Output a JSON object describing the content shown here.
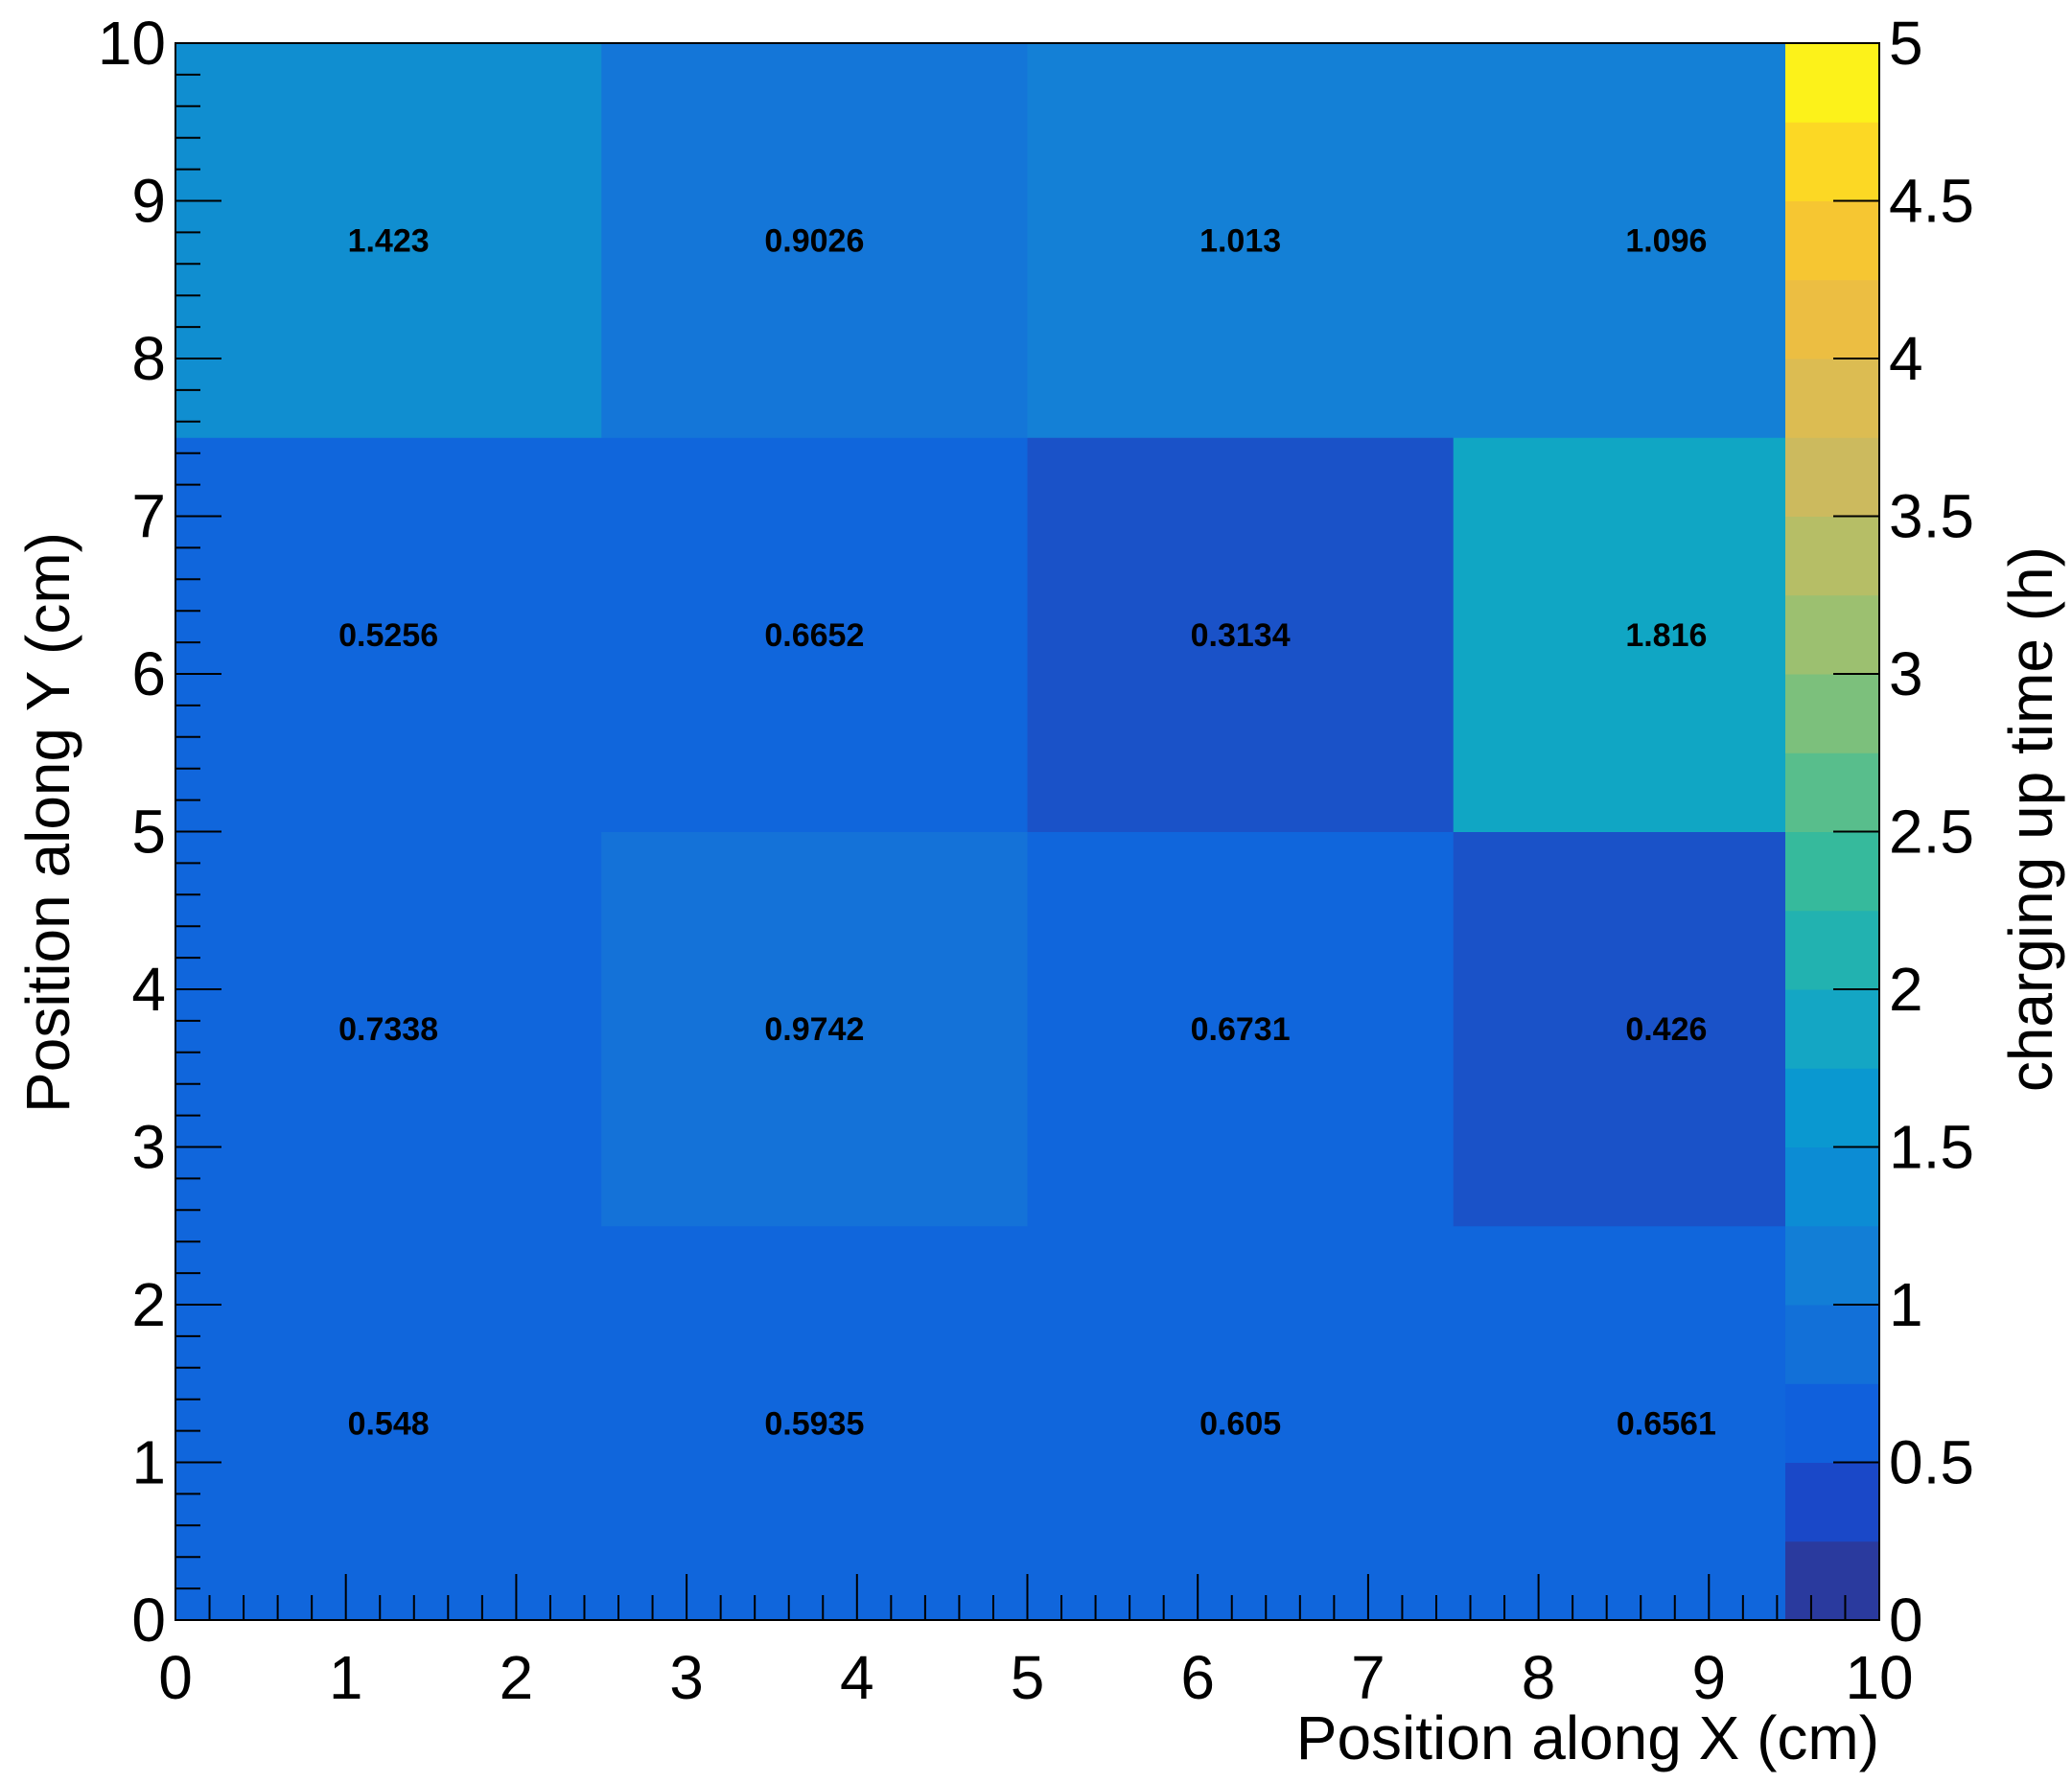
{
  "chart_data": {
    "type": "heatmap",
    "title": "",
    "xlabel": "Position along X (cm)",
    "ylabel": "Position along Y (cm)",
    "zlabel": "charging up time (h)",
    "xlim": [
      0,
      10
    ],
    "ylim": [
      0,
      10
    ],
    "zlim": [
      0,
      5
    ],
    "x_ticks": [
      "0",
      "1",
      "2",
      "3",
      "4",
      "5",
      "6",
      "7",
      "8",
      "9",
      "10"
    ],
    "y_ticks": [
      "0",
      "1",
      "2",
      "3",
      "4",
      "5",
      "6",
      "7",
      "8",
      "9",
      "10"
    ],
    "z_ticks": [
      "0",
      "0.5",
      "1",
      "1.5",
      "2",
      "2.5",
      "3",
      "3.5",
      "4",
      "4.5",
      "5"
    ],
    "x_bin_edges": [
      0,
      2.5,
      5,
      7.5,
      9.5
    ],
    "y_bin_edges": [
      0,
      2.5,
      5,
      7.5,
      10
    ],
    "cells": [
      {
        "x": 1.25,
        "y": 1.25,
        "value": 0.548,
        "label": "0.548"
      },
      {
        "x": 3.75,
        "y": 1.25,
        "value": 0.5935,
        "label": "0.5935"
      },
      {
        "x": 6.25,
        "y": 1.25,
        "value": 0.605,
        "label": "0.605"
      },
      {
        "x": 8.75,
        "y": 1.25,
        "value": 0.6561,
        "label": "0.6561"
      },
      {
        "x": 1.25,
        "y": 3.75,
        "value": 0.7338,
        "label": "0.7338"
      },
      {
        "x": 3.75,
        "y": 3.75,
        "value": 0.9742,
        "label": "0.9742"
      },
      {
        "x": 6.25,
        "y": 3.75,
        "value": 0.6731,
        "label": "0.6731"
      },
      {
        "x": 8.75,
        "y": 3.75,
        "value": 0.426,
        "label": "0.426"
      },
      {
        "x": 1.25,
        "y": 6.25,
        "value": 0.5256,
        "label": "0.5256"
      },
      {
        "x": 3.75,
        "y": 6.25,
        "value": 0.6652,
        "label": "0.6652"
      },
      {
        "x": 6.25,
        "y": 6.25,
        "value": 0.3134,
        "label": "0.3134"
      },
      {
        "x": 8.75,
        "y": 6.25,
        "value": 1.816,
        "label": "1.816"
      },
      {
        "x": 1.25,
        "y": 8.75,
        "value": 1.423,
        "label": "1.423"
      },
      {
        "x": 3.75,
        "y": 8.75,
        "value": 0.9026,
        "label": "0.9026"
      },
      {
        "x": 6.25,
        "y": 8.75,
        "value": 1.013,
        "label": "1.013"
      },
      {
        "x": 8.75,
        "y": 8.75,
        "value": 1.096,
        "label": "1.096"
      }
    ],
    "colorbar_palette": [
      "#2a3a9e",
      "#1a48c8",
      "#1060dc",
      "#1270d8",
      "#127ed6",
      "#0c8cd4",
      "#0a98d0",
      "#14a6c4",
      "#22b2b0",
      "#36ba9c",
      "#58be8c",
      "#7cc07c",
      "#9cc070",
      "#b6be66",
      "#ccba5e",
      "#dcbc52",
      "#ecbe42",
      "#f6c632",
      "#fcd824",
      "#fcf21a"
    ],
    "cell_colors": {
      "0.548": "#1066dc",
      "0.5935": "#1066dc",
      "0.605": "#1066dc",
      "0.6561": "#1066dc",
      "0.7338": "#1066dc",
      "0.9742": "#1472d8",
      "0.6731": "#1066dc",
      "0.426": "#1a52c8",
      "0.5256": "#1066dc",
      "0.6652": "#1066dc",
      "0.3134": "#1a52c8",
      "1.816": "#10a6c4",
      "1.423": "#108ed0",
      "0.9026": "#1476d8",
      "1.013": "#1480d6",
      "1.096": "#1480d6"
    },
    "grid": false,
    "legend": "colorbar-right"
  }
}
